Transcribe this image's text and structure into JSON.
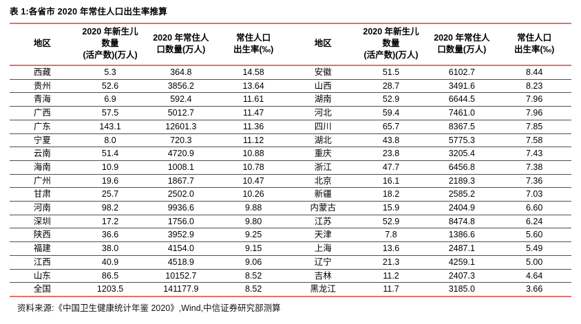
{
  "title": "表 1:各省市 2020 年常住人口出生率推算",
  "source": "资料来源:《中国卫生健康统计年鉴 2020》,Wind,中信证券研究部测算",
  "colors": {
    "accent_red": "#e0716f",
    "row_divider": "#4d4d4d",
    "background": "#ffffff",
    "text": "#000000"
  },
  "header": {
    "region": "地区",
    "newborn": [
      "2020 年新生儿",
      "数量",
      "(活产数)(万人)"
    ],
    "population": [
      "2020 年常住人",
      "口数量(万人)"
    ],
    "rate": [
      "常住人口",
      "出生率(‰)"
    ]
  },
  "table": {
    "columns": [
      "地区",
      "2020 年新生儿数量(活产数)(万人)",
      "2020 年常住人口数量(万人)",
      "常住人口出生率(‰)"
    ],
    "left_rows": [
      {
        "region": "西藏",
        "newborn": "5.3",
        "population": "364.8",
        "rate": "14.58"
      },
      {
        "region": "贵州",
        "newborn": "52.6",
        "population": "3856.2",
        "rate": "13.64"
      },
      {
        "region": "青海",
        "newborn": "6.9",
        "population": "592.4",
        "rate": "11.61"
      },
      {
        "region": "广西",
        "newborn": "57.5",
        "population": "5012.7",
        "rate": "11.47"
      },
      {
        "region": "广东",
        "newborn": "143.1",
        "population": "12601.3",
        "rate": "11.36"
      },
      {
        "region": "宁夏",
        "newborn": "8.0",
        "population": "720.3",
        "rate": "11.12"
      },
      {
        "region": "云南",
        "newborn": "51.4",
        "population": "4720.9",
        "rate": "10.88"
      },
      {
        "region": "海南",
        "newborn": "10.9",
        "population": "1008.1",
        "rate": "10.78"
      },
      {
        "region": "广州",
        "newborn": "19.6",
        "population": "1867.7",
        "rate": "10.47"
      },
      {
        "region": "甘肃",
        "newborn": "25.7",
        "population": "2502.0",
        "rate": "10.26"
      },
      {
        "region": "河南",
        "newborn": "98.2",
        "population": "9936.6",
        "rate": "9.88"
      },
      {
        "region": "深圳",
        "newborn": "17.2",
        "population": "1756.0",
        "rate": "9.80"
      },
      {
        "region": "陕西",
        "newborn": "36.6",
        "population": "3952.9",
        "rate": "9.25"
      },
      {
        "region": "福建",
        "newborn": "38.0",
        "population": "4154.0",
        "rate": "9.15"
      },
      {
        "region": "江西",
        "newborn": "40.9",
        "population": "4518.9",
        "rate": "9.06"
      },
      {
        "region": "山东",
        "newborn": "86.5",
        "population": "10152.7",
        "rate": "8.52"
      },
      {
        "region": "全国",
        "newborn": "1203.5",
        "population": "141177.9",
        "rate": "8.52"
      }
    ],
    "right_rows": [
      {
        "region": "安徽",
        "newborn": "51.5",
        "population": "6102.7",
        "rate": "8.44"
      },
      {
        "region": "山西",
        "newborn": "28.7",
        "population": "3491.6",
        "rate": "8.23"
      },
      {
        "region": "湖南",
        "newborn": "52.9",
        "population": "6644.5",
        "rate": "7.96"
      },
      {
        "region": "河北",
        "newborn": "59.4",
        "population": "7461.0",
        "rate": "7.96"
      },
      {
        "region": "四川",
        "newborn": "65.7",
        "population": "8367.5",
        "rate": "7.85"
      },
      {
        "region": "湖北",
        "newborn": "43.8",
        "population": "5775.3",
        "rate": "7.58"
      },
      {
        "region": "重庆",
        "newborn": "23.8",
        "population": "3205.4",
        "rate": "7.43"
      },
      {
        "region": "浙江",
        "newborn": "47.7",
        "population": "6456.8",
        "rate": "7.38"
      },
      {
        "region": "北京",
        "newborn": "16.1",
        "population": "2189.3",
        "rate": "7.36"
      },
      {
        "region": "新疆",
        "newborn": "18.2",
        "population": "2585.2",
        "rate": "7.03"
      },
      {
        "region": "内蒙古",
        "newborn": "15.9",
        "population": "2404.9",
        "rate": "6.60"
      },
      {
        "region": "江苏",
        "newborn": "52.9",
        "population": "8474.8",
        "rate": "6.24"
      },
      {
        "region": "天津",
        "newborn": "7.8",
        "population": "1386.6",
        "rate": "5.60"
      },
      {
        "region": "上海",
        "newborn": "13.6",
        "population": "2487.1",
        "rate": "5.49"
      },
      {
        "region": "辽宁",
        "newborn": "21.3",
        "population": "4259.1",
        "rate": "5.00"
      },
      {
        "region": "吉林",
        "newborn": "11.2",
        "population": "2407.3",
        "rate": "4.64"
      },
      {
        "region": "黑龙江",
        "newborn": "11.7",
        "population": "3185.0",
        "rate": "3.66"
      }
    ]
  }
}
